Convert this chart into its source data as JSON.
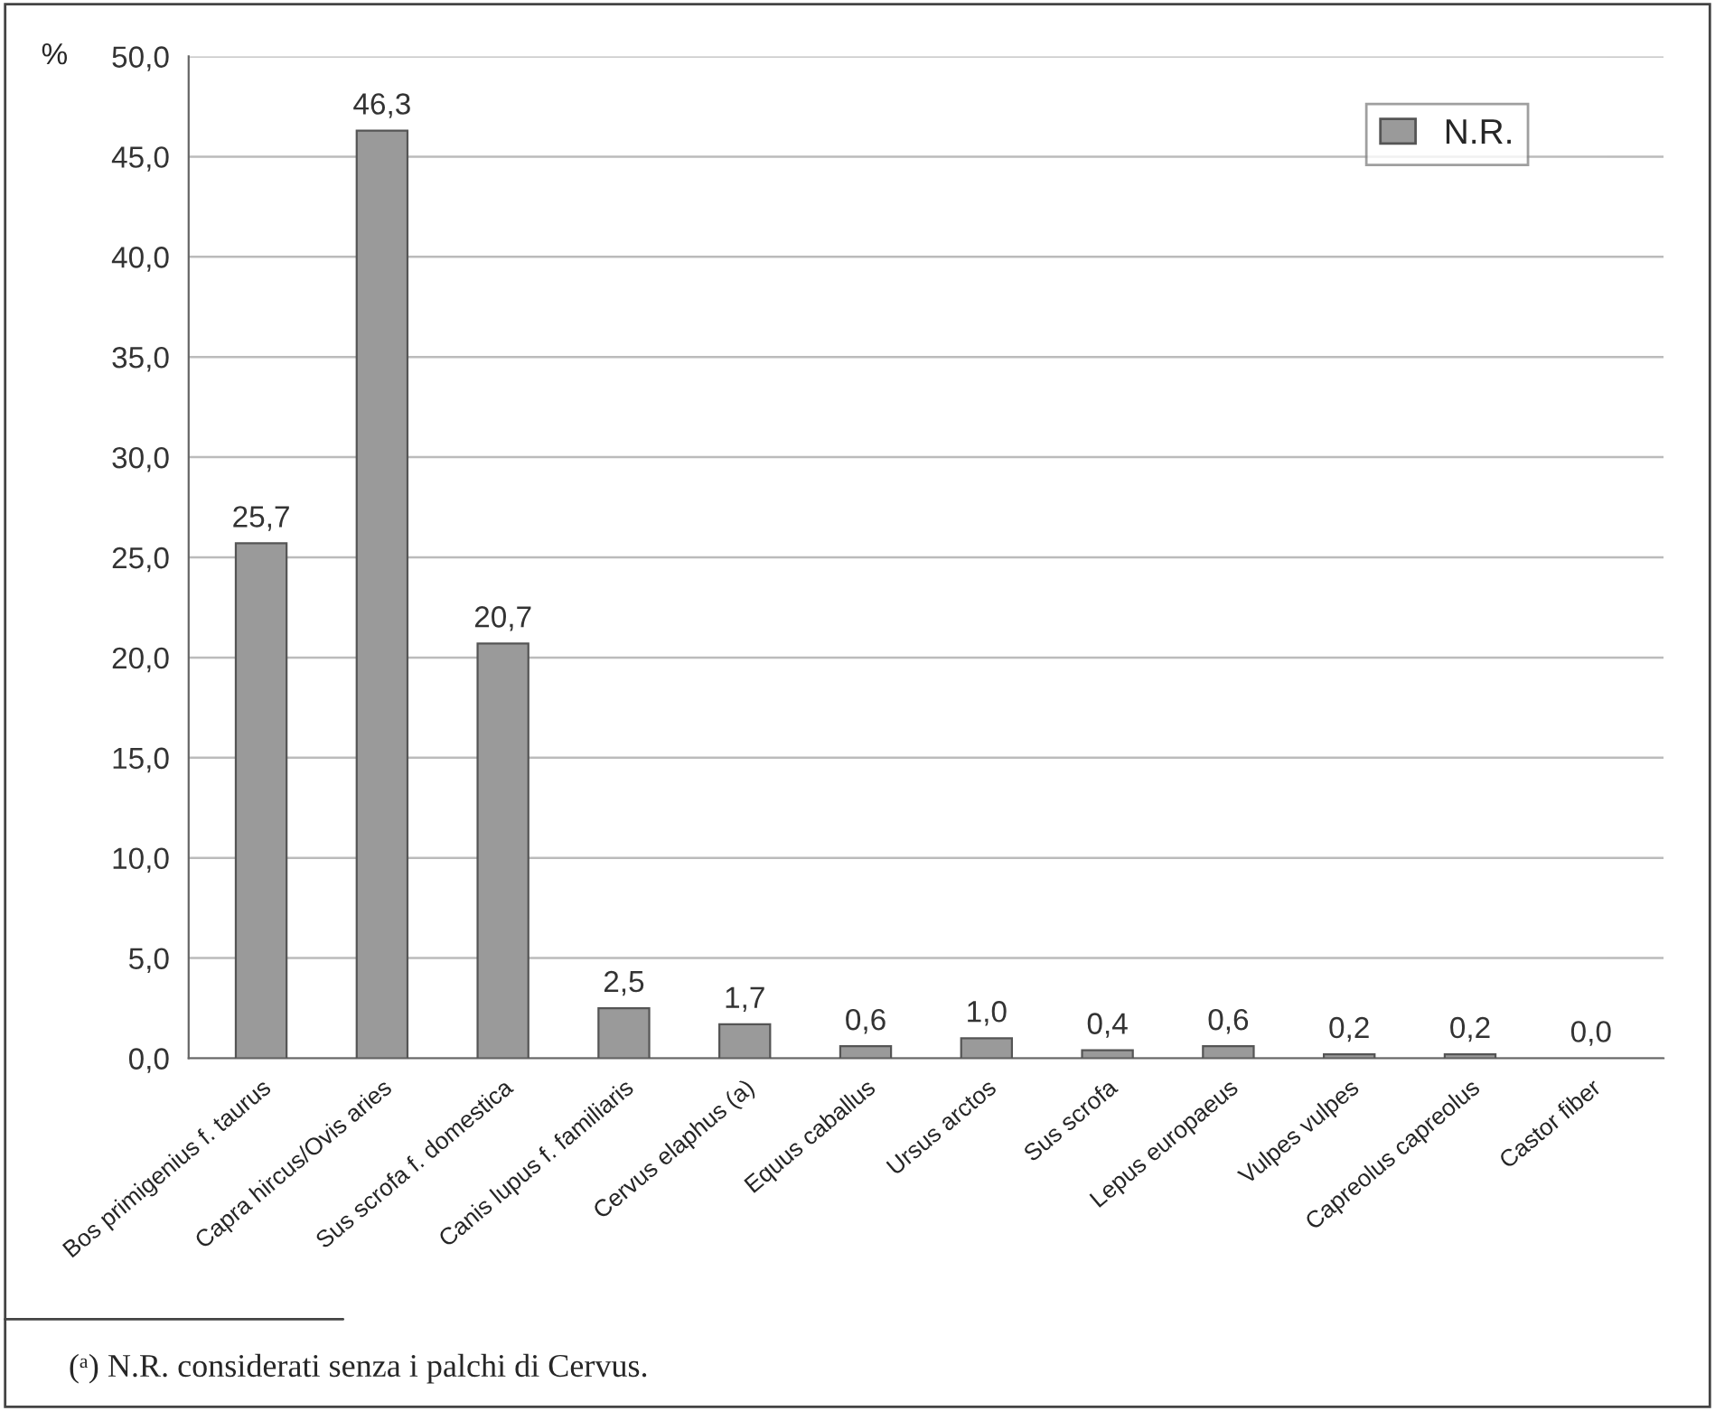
{
  "chart_data": {
    "type": "bar",
    "ylabel": "%",
    "categories": [
      "Bos primigenius f. taurus",
      "Capra hircus/Ovis aries",
      "Sus scrofa f. domestica",
      "Canis lupus f. familiaris",
      "Cervus elaphus (a)",
      "Equus caballus",
      "Ursus arctos",
      "Sus scrofa",
      "Lepus europaeus",
      "Vulpes vulpes",
      "Capreolus capreolus",
      "Castor fiber"
    ],
    "series": [
      {
        "name": "N.R.",
        "color": "#9a9a9a",
        "values": [
          25.7,
          46.3,
          20.7,
          2.5,
          1.7,
          0.6,
          1.0,
          0.4,
          0.6,
          0.2,
          0.2,
          0.0
        ],
        "value_labels": [
          "25,7",
          "46,3",
          "20,7",
          "2,5",
          "1,7",
          "0,6",
          "1,0",
          "0,4",
          "0,6",
          "0,2",
          "0,2",
          "0,0"
        ]
      }
    ],
    "ylim": [
      0,
      50
    ],
    "yticks": [
      {
        "value": 0,
        "label": "0,0"
      },
      {
        "value": 5,
        "label": "5,0"
      },
      {
        "value": 10,
        "label": "10,0"
      },
      {
        "value": 15,
        "label": "15,0"
      },
      {
        "value": 20,
        "label": "20,0"
      },
      {
        "value": 25,
        "label": "25,0"
      },
      {
        "value": 30,
        "label": "30,0"
      },
      {
        "value": 35,
        "label": "35,0"
      },
      {
        "value": 40,
        "label": "40,0"
      },
      {
        "value": 45,
        "label": "45,0"
      },
      {
        "value": 50,
        "label": "50,0"
      }
    ],
    "grid": "y",
    "legend": "top right",
    "annotations": [
      "(ᵃ) N.R. considerati senza i palchi di Cervus."
    ]
  }
}
